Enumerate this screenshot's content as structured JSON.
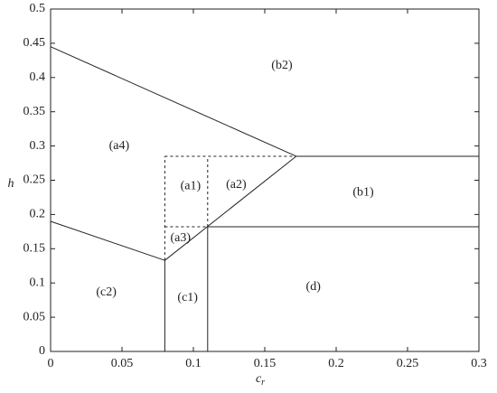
{
  "chart_data": {
    "type": "region",
    "xlabel": "c",
    "xlabel_sub": "r",
    "ylabel": "h",
    "xlim": [
      0,
      0.3
    ],
    "ylim": [
      0,
      0.5
    ],
    "xticks": [
      0,
      0.05,
      0.1,
      0.15,
      0.2,
      0.25,
      0.3
    ],
    "yticks": [
      0,
      0.05,
      0.1,
      0.15,
      0.2,
      0.25,
      0.3,
      0.35,
      0.4,
      0.45,
      0.5
    ],
    "color": "#222222",
    "segments": [
      {
        "x": [
          0,
          0.172
        ],
        "y": [
          0.445,
          0.285
        ],
        "dashed": false
      },
      {
        "x": [
          0.172,
          0.3
        ],
        "y": [
          0.285,
          0.285
        ],
        "dashed": false
      },
      {
        "x": [
          0,
          0.08
        ],
        "y": [
          0.19,
          0.133
        ],
        "dashed": false
      },
      {
        "x": [
          0.08,
          0.172
        ],
        "y": [
          0.133,
          0.285
        ],
        "dashed": false
      },
      {
        "x": [
          0.08,
          0.08
        ],
        "y": [
          0,
          0.133
        ],
        "dashed": false
      },
      {
        "x": [
          0.11,
          0.11
        ],
        "y": [
          0,
          0.182
        ],
        "dashed": false
      },
      {
        "x": [
          0.11,
          0.3
        ],
        "y": [
          0.182,
          0.182
        ],
        "dashed": false
      },
      {
        "x": [
          0.08,
          0.08
        ],
        "y": [
          0.133,
          0.285
        ],
        "dashed": true
      },
      {
        "x": [
          0.11,
          0.11
        ],
        "y": [
          0.182,
          0.285
        ],
        "dashed": true
      },
      {
        "x": [
          0.08,
          0.172
        ],
        "y": [
          0.285,
          0.285
        ],
        "dashed": true
      },
      {
        "x": [
          0.08,
          0.11
        ],
        "y": [
          0.182,
          0.182
        ],
        "dashed": true
      }
    ],
    "regions": [
      {
        "label": "(a4)",
        "x": 0.048,
        "y": 0.3
      },
      {
        "label": "(b2)",
        "x": 0.162,
        "y": 0.417
      },
      {
        "label": "(a1)",
        "x": 0.098,
        "y": 0.241
      },
      {
        "label": "(a2)",
        "x": 0.13,
        "y": 0.243
      },
      {
        "label": "(b1)",
        "x": 0.219,
        "y": 0.232
      },
      {
        "label": "(a3)",
        "x": 0.091,
        "y": 0.165
      },
      {
        "label": "(c2)",
        "x": 0.039,
        "y": 0.086
      },
      {
        "label": "(c1)",
        "x": 0.096,
        "y": 0.078
      },
      {
        "label": "(d)",
        "x": 0.184,
        "y": 0.094
      }
    ]
  }
}
